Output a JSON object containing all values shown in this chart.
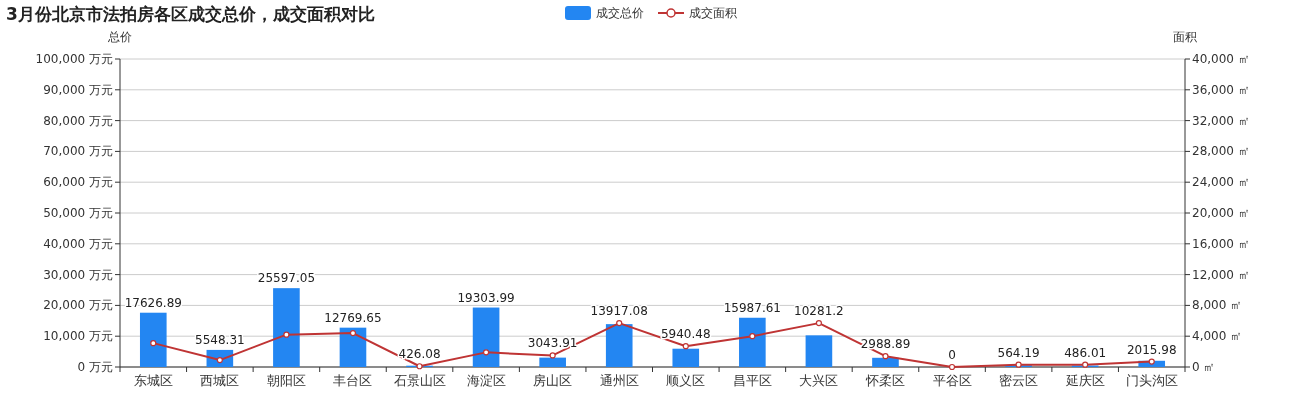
{
  "chart_data": {
    "type": "bar",
    "title": "3月份北京市法拍房各区成交总价，成交面积对比",
    "ylabel": "总价",
    "y2label": "面积",
    "categories": [
      "东城区",
      "西城区",
      "朝阳区",
      "丰台区",
      "石景山区",
      "海淀区",
      "房山区",
      "通州区",
      "顺义区",
      "昌平区",
      "大兴区",
      "怀柔区",
      "平谷区",
      "密云区",
      "延庆区",
      "门头沟区"
    ],
    "series": [
      {
        "name": "成交总价",
        "color": "#2386f2",
        "values": [
          17626.89,
          5548.31,
          25597.05,
          12769.65,
          426.08,
          19303.99,
          3043.91,
          13917.08,
          5940.48,
          15987.61,
          10281.2,
          2988.89,
          0,
          564.19,
          486.01,
          2015.98
        ],
        "value_labels": [
          "17626.89",
          "5548.31",
          "25597.05",
          "12769.65",
          "426.08",
          "19303.99",
          "3043.91",
          "13917.08",
          "5940.48",
          "15987.61",
          "10281.2",
          "2988.89",
          "0",
          "564.19",
          "486.01",
          "2015.98"
        ]
      },
      {
        "name": "成交面积",
        "type": "line",
        "axis": "y2",
        "color": "#bf3434",
        "marker": "circle",
        "values": [
          3100,
          900,
          4200,
          4400,
          100,
          1900,
          1500,
          5700,
          2700,
          4000,
          5700,
          1400,
          0,
          300,
          300,
          700
        ]
      }
    ],
    "ylim": [
      0,
      100000
    ],
    "yticks": [
      {
        "value": 0,
        "label": "0 万元"
      },
      {
        "value": 10000,
        "label": "10,000 万元"
      },
      {
        "value": 20000,
        "label": "20,000 万元"
      },
      {
        "value": 30000,
        "label": "30,000 万元"
      },
      {
        "value": 40000,
        "label": "40,000 万元"
      },
      {
        "value": 50000,
        "label": "50,000 万元"
      },
      {
        "value": 60000,
        "label": "60,000 万元"
      },
      {
        "value": 70000,
        "label": "70,000 万元"
      },
      {
        "value": 80000,
        "label": "80,000 万元"
      },
      {
        "value": 90000,
        "label": "90,000 万元"
      },
      {
        "value": 100000,
        "label": "100,000 万元"
      }
    ],
    "y2lim": [
      0,
      40000
    ],
    "y2ticks": [
      {
        "value": 0,
        "label": "0 ㎡"
      },
      {
        "value": 4000,
        "label": "4,000 ㎡"
      },
      {
        "value": 8000,
        "label": "8,000 ㎡"
      },
      {
        "value": 12000,
        "label": "12,000 ㎡"
      },
      {
        "value": 16000,
        "label": "16,000 ㎡"
      },
      {
        "value": 20000,
        "label": "20,000 ㎡"
      },
      {
        "value": 24000,
        "label": "24,000 ㎡"
      },
      {
        "value": 28000,
        "label": "28,000 ㎡"
      },
      {
        "value": 32000,
        "label": "32,000 ㎡"
      },
      {
        "value": 36000,
        "label": "36,000 ㎡"
      },
      {
        "value": 40000,
        "label": "40,000 ㎡"
      }
    ],
    "grid": "y",
    "legend": "top"
  }
}
